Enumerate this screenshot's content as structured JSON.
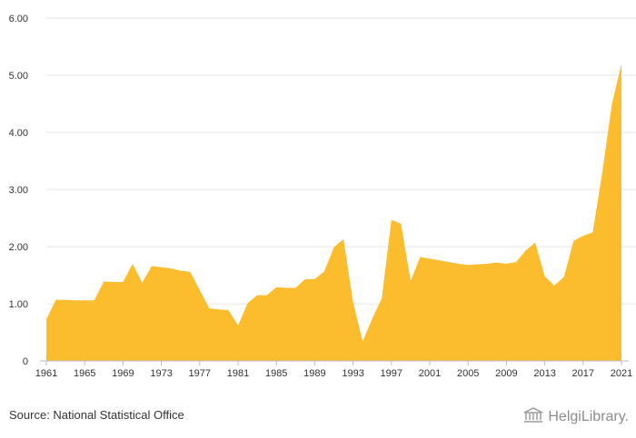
{
  "chart_data": {
    "type": "area",
    "title": "",
    "xlabel": "",
    "ylabel": "",
    "color": "#FBBC2E",
    "gridlines": true,
    "xlim": [
      1961,
      2021
    ],
    "ylim": [
      0,
      6
    ],
    "y_ticks": [
      "0",
      "1.00",
      "2.00",
      "3.00",
      "4.00",
      "5.00",
      "6.00"
    ],
    "x_ticks": [
      "1961",
      "1965",
      "1969",
      "1973",
      "1977",
      "1981",
      "1985",
      "1989",
      "1993",
      "1997",
      "2001",
      "2005",
      "2009",
      "2013",
      "2017",
      "2021"
    ],
    "x": [
      1961,
      1962,
      1963,
      1964,
      1965,
      1966,
      1967,
      1968,
      1969,
      1970,
      1971,
      1972,
      1973,
      1974,
      1975,
      1976,
      1977,
      1978,
      1979,
      1980,
      1981,
      1982,
      1983,
      1984,
      1985,
      1986,
      1987,
      1988,
      1989,
      1990,
      1991,
      1992,
      1993,
      1994,
      1995,
      1996,
      1997,
      1998,
      1999,
      2000,
      2001,
      2002,
      2003,
      2004,
      2005,
      2006,
      2007,
      2008,
      2009,
      2010,
      2011,
      2012,
      2013,
      2014,
      2015,
      2016,
      2017,
      2018,
      2019,
      2020,
      2021
    ],
    "values": [
      0.73,
      1.07,
      1.07,
      1.06,
      1.06,
      1.06,
      1.39,
      1.38,
      1.38,
      1.7,
      1.37,
      1.66,
      1.64,
      1.62,
      1.58,
      1.56,
      1.24,
      0.92,
      0.9,
      0.89,
      0.62,
      1.01,
      1.15,
      1.15,
      1.29,
      1.28,
      1.28,
      1.43,
      1.43,
      1.57,
      1.99,
      2.13,
      1.03,
      0.34,
      0.74,
      1.1,
      2.47,
      2.4,
      1.4,
      1.82,
      1.79,
      1.76,
      1.73,
      1.7,
      1.68,
      1.69,
      1.7,
      1.72,
      1.7,
      1.73,
      1.93,
      2.07,
      1.48,
      1.32,
      1.47,
      2.1,
      2.19,
      2.25,
      3.3,
      4.49,
      5.2
    ]
  },
  "footer": {
    "source": "Source: National Statistical Office",
    "logo_text": "HelgiLibrary."
  }
}
